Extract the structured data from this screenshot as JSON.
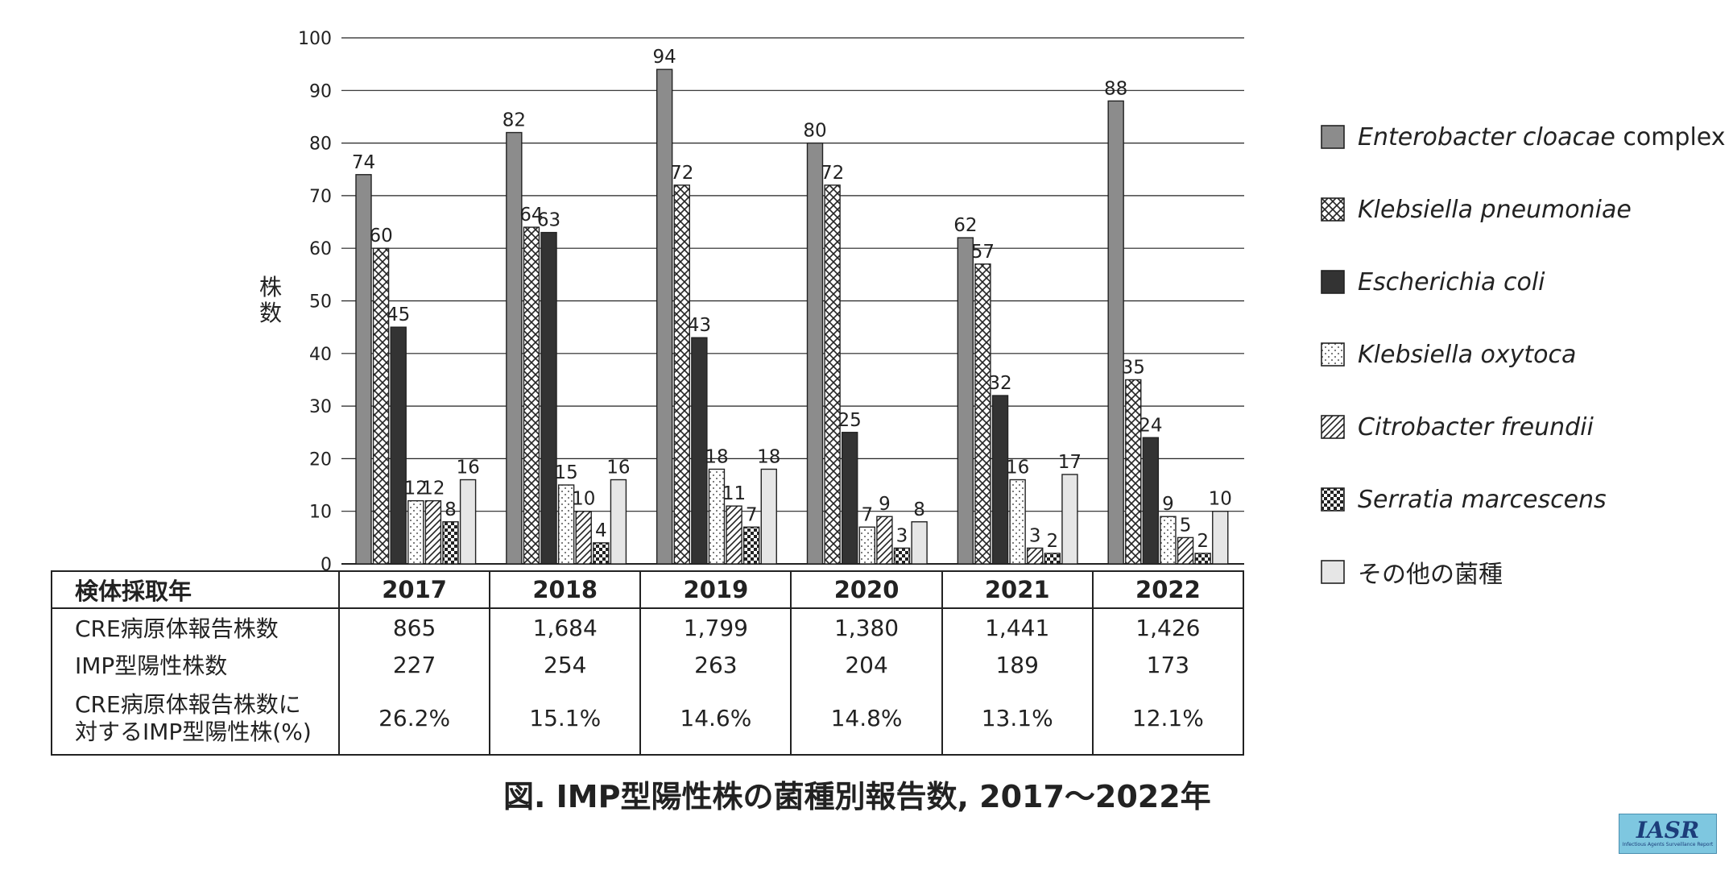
{
  "chart_data": {
    "type": "bar",
    "ylabel": "株\n数",
    "ylim": [
      0,
      100
    ],
    "yticks": [
      0,
      10,
      20,
      30,
      40,
      50,
      60,
      70,
      80,
      90,
      100
    ],
    "grid": true,
    "legend_position": "right",
    "categories": [
      "2017",
      "2018",
      "2019",
      "2020",
      "2021",
      "2022"
    ],
    "series": [
      {
        "name": "Enterobacter cloacae",
        "name_suffix": " complex",
        "pattern": "solid-gray",
        "color": "#8c8c8c",
        "values": [
          74,
          82,
          94,
          80,
          62,
          88
        ]
      },
      {
        "name": "Klebsiella pneumoniae",
        "pattern": "crosshatch",
        "color": "#ffffff",
        "values": [
          60,
          64,
          72,
          72,
          57,
          35
        ]
      },
      {
        "name": "Escherichia coli",
        "pattern": "solid-dark",
        "color": "#333333",
        "values": [
          45,
          63,
          43,
          25,
          32,
          24
        ]
      },
      {
        "name": "Klebsiella oxytoca",
        "pattern": "dots",
        "color": "#ffffff",
        "values": [
          12,
          15,
          18,
          7,
          16,
          9
        ]
      },
      {
        "name": "Citrobacter freundii",
        "pattern": "diagonal",
        "color": "#ffffff",
        "values": [
          12,
          10,
          11,
          9,
          3,
          5
        ]
      },
      {
        "name": "Serratia marcescens",
        "pattern": "checker",
        "color": "#222222",
        "values": [
          8,
          4,
          7,
          3,
          2,
          2
        ]
      },
      {
        "name": "その他の菌種",
        "pattern": "solid-light",
        "color": "#e6e6e6",
        "values": [
          16,
          16,
          18,
          8,
          17,
          10
        ]
      }
    ]
  },
  "table": {
    "header_label": "検体採取年",
    "years": [
      "2017",
      "2018",
      "2019",
      "2020",
      "2021",
      "2022"
    ],
    "rows": [
      {
        "label": "CRE病原体報告株数",
        "values": [
          "865",
          "1,684",
          "1,799",
          "1,380",
          "1,441",
          "1,426"
        ]
      },
      {
        "label": "IMP型陽性株数",
        "values": [
          "227",
          "254",
          "263",
          "204",
          "189",
          "173"
        ]
      },
      {
        "label_line1": "CRE病原体報告株数に",
        "label_line2": "対するIMP型陽性株(%)",
        "values": [
          "26.2%",
          "15.1%",
          "14.6%",
          "14.8%",
          "13.1%",
          "12.1%"
        ]
      }
    ]
  },
  "figure_title": "図. IMP型陽性株の菌種別報告数, 2017〜2022年",
  "logo": {
    "text": "IASR",
    "subtext": "Infectious Agents Surveillance Report"
  }
}
